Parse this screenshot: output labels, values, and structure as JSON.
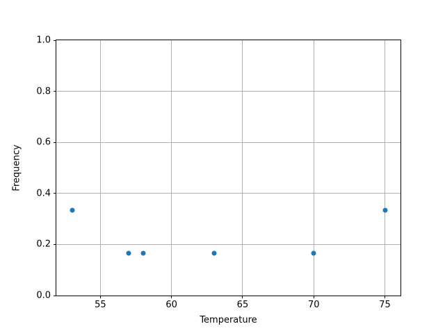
{
  "chart_data": {
    "type": "scatter",
    "title": "",
    "xlabel": "Temperature",
    "ylabel": "Frequency",
    "x": [
      53,
      57,
      58,
      63,
      70,
      75
    ],
    "y": [
      0.3333,
      0.1667,
      0.1667,
      0.1667,
      0.1667,
      0.3333
    ],
    "points": [
      {
        "x": 53,
        "y": 0.3333
      },
      {
        "x": 57,
        "y": 0.1667
      },
      {
        "x": 58,
        "y": 0.1667
      },
      {
        "x": 63,
        "y": 0.1667
      },
      {
        "x": 70,
        "y": 0.1667
      },
      {
        "x": 75,
        "y": 0.3333
      }
    ],
    "xlim": [
      51.9,
      76.1
    ],
    "ylim": [
      0.0,
      1.0
    ],
    "xticks": [
      55,
      60,
      65,
      70,
      75
    ],
    "xtick_labels": [
      "55",
      "60",
      "65",
      "70",
      "75"
    ],
    "yticks": [
      0.0,
      0.2,
      0.4,
      0.6,
      0.8,
      1.0
    ],
    "ytick_labels": [
      "0.0",
      "0.2",
      "0.4",
      "0.6",
      "0.8",
      "1.0"
    ],
    "grid": true,
    "legend": null,
    "marker_color": "#1f77b4",
    "grid_color": "#b0b0b0",
    "spine_color": "#000000",
    "background_color": "#ffffff"
  }
}
